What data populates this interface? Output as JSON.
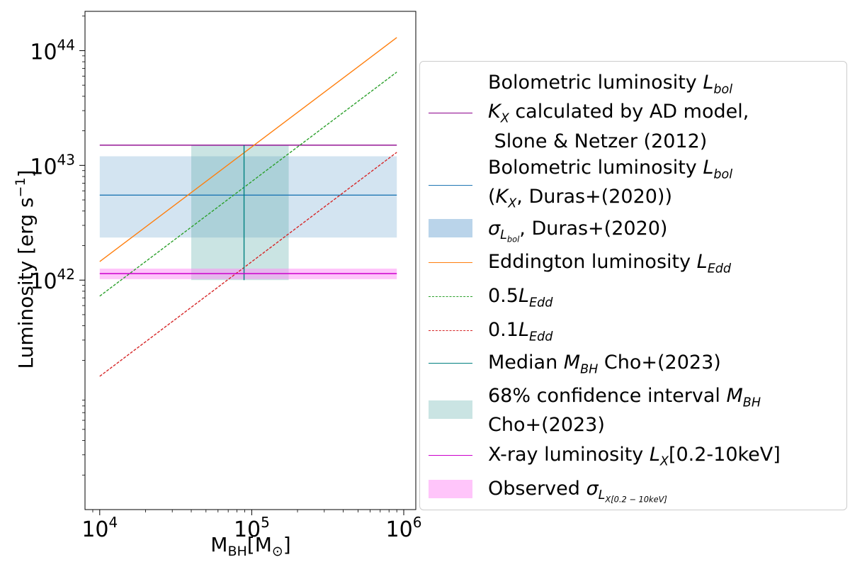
{
  "chart_data": {
    "type": "line",
    "xscale": "log",
    "yscale": "log",
    "xlim": [
      8000,
      1200000
    ],
    "ylim": [
      10000000000000000000000000000000000000000,
      220000000000000000000000000000000000000000000
    ],
    "xlabel": "M_BH[M_⊙]",
    "ylabel": "Luminosity [erg s^-1]",
    "x_ticks": [
      10000,
      100000,
      1000000
    ],
    "x_tick_labels": [
      {
        "base": "10",
        "exp": "4"
      },
      {
        "base": "10",
        "exp": "5"
      },
      {
        "base": "10",
        "exp": "6"
      }
    ],
    "y_ticks": [
      1000000000000000000000000000000000000000000,
      10000000000000000000000000000000000000000000,
      100000000000000000000000000000000000000000000
    ],
    "y_tick_labels": [
      {
        "base": "10",
        "exp": "42"
      },
      {
        "base": "10",
        "exp": "43"
      },
      {
        "base": "10",
        "exp": "44"
      }
    ],
    "x_range": [
      10000,
      900000
    ],
    "series": [
      {
        "name": "Bolometric luminosity L_bol, K_X calculated by AD model, Slone & Netzer (2012)",
        "kind": "hline",
        "y": 15000000000000000000000000000000000000000000,
        "color": "#8b008b"
      },
      {
        "name": "Bolometric luminosity L_bol (K_X, Duras+(2020))",
        "kind": "hline",
        "y": 5500000000000000000000000000000000000000000,
        "color": "#1f77b4"
      },
      {
        "name": "Eddington luminosity L_Edd",
        "kind": "line",
        "x": [
          10000,
          900000
        ],
        "y": [
          1450000000000000000000000000000000000000000,
          130000000000000000000000000000000000000000000
        ],
        "color": "#ff7f0e"
      },
      {
        "name": "0.5L_Edd",
        "kind": "line",
        "x": [
          10000,
          900000
        ],
        "y": [
          725000000000000000000000000000000000000000,
          65000000000000000000000000000000000000000000
        ],
        "color": "#2ca02c",
        "dashed": true
      },
      {
        "name": "0.1L_Edd",
        "kind": "line",
        "x": [
          10000,
          900000
        ],
        "y": [
          145000000000000000000000000000000000000000,
          13000000000000000000000000000000000000000000
        ],
        "color": "#d62728",
        "dashed": true
      },
      {
        "name": "Median M_BH Cho+(2023)",
        "kind": "vline",
        "x": 89000,
        "y_range": [
          1000000000000000000000000000000000000000000,
          15000000000000000000000000000000000000000000
        ],
        "color": "#008080"
      },
      {
        "name": "X-ray luminosity L_X[0.2-10keV]",
        "kind": "hline",
        "y": 1140000000000000000000000000000000000000000,
        "color": "#cc00cc"
      }
    ],
    "bands": [
      {
        "name": "sigma_Lbol, Duras+(2020)",
        "x_range": [
          10000,
          900000
        ],
        "y_range": [
          2350000000000000000000000000000000000000000,
          12000000000000000000000000000000000000000000
        ],
        "color": "#aecde6",
        "alpha": 0.55
      },
      {
        "name": "68% confidence interval M_BH Cho+(2023)",
        "x_range": [
          40000,
          175000
        ],
        "y_range": [
          1000000000000000000000000000000000000000000,
          15000000000000000000000000000000000000000000
        ],
        "color": "#5aaca8",
        "alpha": 0.32
      },
      {
        "name": "Observed sigma_LX[0.2-10keV]",
        "x_range": [
          10000,
          900000
        ],
        "y_range": [
          1020000000000000000000000000000000000000000,
          1260000000000000000000000000000000000000000
        ],
        "color": "#ff8cf5",
        "alpha": 0.5
      }
    ]
  },
  "legend": {
    "item1": {
      "line1": "Bolometric luminosity ",
      "var1": "L",
      "sub1": "bol",
      "line2a": "K",
      "line2sub": "X",
      "line2b": " calculated by AD model,",
      "line3": " Slone & Netzer (2012)"
    },
    "item2": {
      "line1": "Bolometric luminosity ",
      "var1": "L",
      "sub1": "bol",
      "line2a": "(",
      "var2": "K",
      "sub2": "X",
      "line2b": ", Duras+(2020))"
    },
    "item3": {
      "sigma": "σ",
      "sub": "L",
      "subsub": "bol",
      "text": ", Duras+(2020)"
    },
    "item4": {
      "text": "Eddington luminosity ",
      "var": "L",
      "sub": "Edd"
    },
    "item5": {
      "pre": "0.5",
      "var": "L",
      "sub": "Edd"
    },
    "item6": {
      "pre": "0.1",
      "var": "L",
      "sub": "Edd"
    },
    "item7": {
      "text": "Median ",
      "var": "M",
      "sub": "BH",
      "post": " Cho+(2023)"
    },
    "item8": {
      "line1": "68% confidence interval ",
      "var": "M",
      "sub": "BH",
      "line2": "Cho+(2023)"
    },
    "item9": {
      "text": "X-ray luminosity ",
      "var": "L",
      "sub": "X",
      "post": "[0.2-10keV]"
    },
    "item10": {
      "text": "Observed ",
      "sigma": "σ",
      "sub": "L",
      "subsub": "X[0.2 − 10keV]"
    }
  }
}
